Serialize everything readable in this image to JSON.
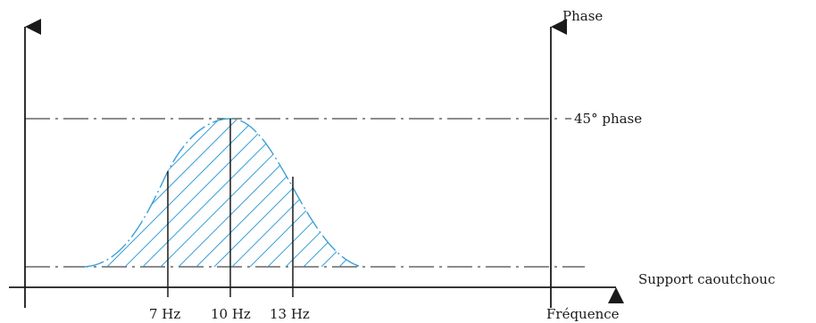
{
  "labels": {
    "phase_axis": "Phase",
    "phase_marker": "45° phase",
    "x_axis": "Support caoutchouc",
    "frequency_axis": "Fréquence"
  },
  "ticks": [
    {
      "label": "7 Hz"
    },
    {
      "label": "10 Hz"
    },
    {
      "label": "13 Hz"
    }
  ],
  "colors": {
    "curve": "#3aa0d8",
    "hatch": "#3aa0d8",
    "axes": "#1a1a1a"
  }
}
